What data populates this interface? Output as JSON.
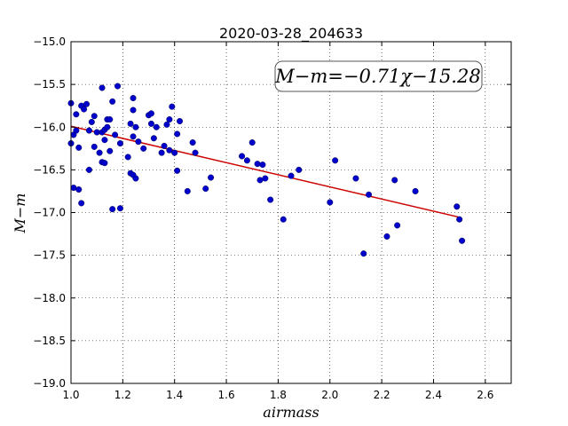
{
  "chart_data": {
    "type": "scatter",
    "title": "2020-03-28_204633",
    "xlabel": "airmass",
    "ylabel": "M−m",
    "xlim": [
      1.0,
      2.7
    ],
    "ylim": [
      -19.0,
      -15.0
    ],
    "x_ticks": [
      "1.0",
      "1.2",
      "1.4",
      "1.6",
      "1.8",
      "2.0",
      "2.2",
      "2.4",
      "2.6"
    ],
    "y_ticks": [
      "−15.0",
      "−15.5",
      "−16.0",
      "−16.5",
      "−17.0",
      "−17.5",
      "−18.0",
      "−18.5",
      "−19.0"
    ],
    "grid": true,
    "annotation": "M−m=−0.71χ−15.28",
    "fit": {
      "slope": -0.71,
      "intercept": -15.28,
      "x_range": [
        1.0,
        2.5
      ],
      "color": "#cc0000"
    },
    "point_color": "#0000cc",
    "points": [
      [
        1.0,
        -15.72
      ],
      [
        1.0,
        -16.19
      ],
      [
        1.01,
        -16.71
      ],
      [
        1.01,
        -16.09
      ],
      [
        1.02,
        -16.04
      ],
      [
        1.02,
        -15.85
      ],
      [
        1.03,
        -16.24
      ],
      [
        1.03,
        -16.73
      ],
      [
        1.04,
        -16.89
      ],
      [
        1.04,
        -15.75
      ],
      [
        1.05,
        -15.79
      ],
      [
        1.06,
        -15.73
      ],
      [
        1.07,
        -16.04
      ],
      [
        1.07,
        -16.5
      ],
      [
        1.08,
        -15.94
      ],
      [
        1.09,
        -15.87
      ],
      [
        1.09,
        -16.23
      ],
      [
        1.1,
        -16.06
      ],
      [
        1.11,
        -16.3
      ],
      [
        1.12,
        -15.54
      ],
      [
        1.12,
        -16.41
      ],
      [
        1.12,
        -16.06
      ],
      [
        1.13,
        -16.03
      ],
      [
        1.13,
        -16.15
      ],
      [
        1.13,
        -16.42
      ],
      [
        1.14,
        -15.91
      ],
      [
        1.14,
        -16.0
      ],
      [
        1.15,
        -15.91
      ],
      [
        1.15,
        -16.28
      ],
      [
        1.16,
        -15.7
      ],
      [
        1.16,
        -16.96
      ],
      [
        1.17,
        -16.09
      ],
      [
        1.18,
        -15.52
      ],
      [
        1.19,
        -16.95
      ],
      [
        1.19,
        -16.19
      ],
      [
        1.22,
        -16.35
      ],
      [
        1.23,
        -15.96
      ],
      [
        1.23,
        -16.54
      ],
      [
        1.24,
        -15.66
      ],
      [
        1.24,
        -15.8
      ],
      [
        1.24,
        -16.11
      ],
      [
        1.24,
        -16.56
      ],
      [
        1.25,
        -16.0
      ],
      [
        1.25,
        -16.6
      ],
      [
        1.26,
        -16.17
      ],
      [
        1.28,
        -16.25
      ],
      [
        1.3,
        -15.86
      ],
      [
        1.31,
        -15.84
      ],
      [
        1.31,
        -15.96
      ],
      [
        1.32,
        -16.13
      ],
      [
        1.33,
        -16.0
      ],
      [
        1.35,
        -16.3
      ],
      [
        1.36,
        -16.22
      ],
      [
        1.37,
        -15.97
      ],
      [
        1.38,
        -16.27
      ],
      [
        1.38,
        -15.91
      ],
      [
        1.39,
        -15.76
      ],
      [
        1.4,
        -16.3
      ],
      [
        1.41,
        -16.08
      ],
      [
        1.41,
        -16.51
      ],
      [
        1.42,
        -15.93
      ],
      [
        1.45,
        -16.75
      ],
      [
        1.47,
        -16.18
      ],
      [
        1.48,
        -16.3
      ],
      [
        1.52,
        -16.72
      ],
      [
        1.54,
        -16.59
      ],
      [
        1.66,
        -16.34
      ],
      [
        1.68,
        -16.39
      ],
      [
        1.7,
        -16.18
      ],
      [
        1.72,
        -16.43
      ],
      [
        1.73,
        -16.62
      ],
      [
        1.74,
        -16.44
      ],
      [
        1.75,
        -16.6
      ],
      [
        1.77,
        -16.85
      ],
      [
        1.82,
        -17.08
      ],
      [
        1.85,
        -16.57
      ],
      [
        1.88,
        -16.5
      ],
      [
        2.0,
        -16.88
      ],
      [
        2.02,
        -16.39
      ],
      [
        2.1,
        -16.6
      ],
      [
        2.13,
        -17.48
      ],
      [
        2.15,
        -16.79
      ],
      [
        2.22,
        -17.28
      ],
      [
        2.25,
        -16.62
      ],
      [
        2.26,
        -17.15
      ],
      [
        2.33,
        -16.75
      ],
      [
        2.49,
        -16.93
      ],
      [
        2.5,
        -17.08
      ],
      [
        2.51,
        -17.33
      ]
    ]
  }
}
